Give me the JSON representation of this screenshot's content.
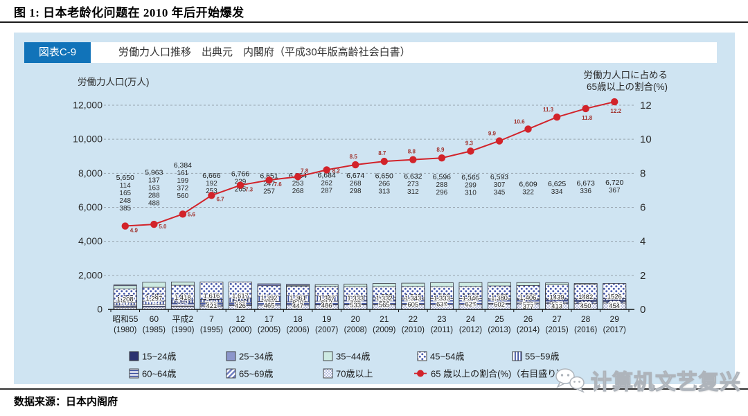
{
  "figure": {
    "title": "图 1: 日本老龄化问题在 2010 年后开始爆发",
    "source": "数据来源：日本内阁府",
    "watermark": "计算机文艺复兴"
  },
  "panel": {
    "badge": "図表C-9",
    "header": "労働力人口推移　出典元　内閣府（平成30年版高齢社会白書）"
  },
  "chart_data": {
    "type": "bar",
    "subtype": "stacked-bar-with-line-overlay",
    "title": "労働力人口推移",
    "left_axis": {
      "title": "労働力人口(万人)",
      "ticks": [
        "12,000",
        "10,000",
        "8,000",
        "6,000",
        "4,000",
        "2,000",
        "0"
      ],
      "min": 0,
      "max": 12000
    },
    "right_axis": {
      "title_line1": "労働力人口に占める",
      "title_line2": "65歳以上の割合(%)",
      "ticks": [
        "12",
        "10",
        "8",
        "6",
        "4",
        "2",
        "0"
      ],
      "min": 0,
      "max": 12
    },
    "grid": "dashed-horizontal",
    "legend_position": "bottom",
    "categories": [
      {
        "era": "昭和55",
        "year": "(1980)"
      },
      {
        "era": "60",
        "year": "(1985)"
      },
      {
        "era": "平成2",
        "year": "(1990)"
      },
      {
        "era": "7",
        "year": "(1995)"
      },
      {
        "era": "12",
        "year": "(2000)"
      },
      {
        "era": "17",
        "year": "(2005)"
      },
      {
        "era": "18",
        "year": "(2006)"
      },
      {
        "era": "19",
        "year": "(2007)"
      },
      {
        "era": "20",
        "year": "(2008)"
      },
      {
        "era": "21",
        "year": "(2009)"
      },
      {
        "era": "22",
        "year": "(2010)"
      },
      {
        "era": "23",
        "year": "(2011)"
      },
      {
        "era": "24",
        "year": "(2012)"
      },
      {
        "era": "25",
        "year": "(2013)"
      },
      {
        "era": "26",
        "year": "(2014)"
      },
      {
        "era": "27",
        "year": "(2015)"
      },
      {
        "era": "28",
        "year": "(2016)"
      },
      {
        "era": "29",
        "year": "(2017)"
      }
    ],
    "totals": [
      "5,650",
      "5,963",
      "6,384",
      "6,666",
      "6,766",
      "6,651",
      "6,664",
      "6,684",
      "6,674",
      "6,650",
      "6,632",
      "6,596",
      "6,565",
      "6,593",
      "6,609",
      "6,625",
      "6,673",
      "6,720"
    ],
    "outside_label_counts": [
      4,
      4,
      4,
      2,
      2,
      2,
      2,
      2,
      2,
      2,
      2,
      2,
      2,
      2,
      1,
      1,
      1,
      1
    ],
    "series": [
      {
        "name": "15~24歳",
        "style": "solid-navy",
        "values": [
          "699",
          "733",
          "834",
          "886",
          "761",
          "635",
          "622",
          "607",
          "589",
          "565",
          "544",
          "525",
          "514",
          "518",
          "518",
          "516",
          "539",
          "545"
        ]
      },
      {
        "name": "25~34歳",
        "style": "solid-periwinkle",
        "values": [
          "1,438",
          "1,261",
          "1,225",
          "1,327",
          "1,508",
          "1,503",
          "1,480",
          "1,429",
          "1,394",
          "1,364",
          "1,329",
          "1,291",
          "1,261",
          "1,239",
          "1,214",
          "1191",
          "1180",
          "1167"
        ]
      },
      {
        "name": "35~44歳",
        "style": "solid-teal",
        "values": [
          "1,393",
          "1,597",
          "1,614",
          "1,378",
          "1,296",
          "1,377",
          "1,413",
          "1,456",
          "1,491",
          "1,523",
          "1,542",
          "1,569",
          "1,577",
          "1,582",
          "1,576",
          "1558",
          "1527",
          "1497"
        ]
      },
      {
        "name": "45~54歳",
        "style": "dots",
        "values": [
          "1,208",
          "1,297",
          "1,418",
          "1,616",
          "1,617",
          "1,392",
          "1,361",
          "1,347",
          "1,333",
          "1,332",
          "1,343",
          "1,333",
          "1,346",
          "1,380",
          "1,406",
          "1439",
          "1482",
          "1526"
        ]
      },
      {
        "name": "55~59歳",
        "style": "vstripes",
        "values": [
          "385",
          "488",
          "560",
          "593",
          "666",
          "776",
          "820",
          "812",
          "769",
          "722",
          "686",
          "655",
          "629",
          "620",
          "620",
          "617",
          "619",
          "628"
        ]
      },
      {
        "name": "60~64歳",
        "style": "hstripes",
        "values": [
          "248",
          "288",
          "372",
          "421",
          "426",
          "465",
          "447",
          "486",
          "533",
          "565",
          "605",
          "637",
          "627",
          "602",
          "575",
          "556",
          "541",
          "536"
        ]
      },
      {
        "name": "65~69歳",
        "style": "diag",
        "values": [
          "165",
          "163",
          "199",
          "253",
          "265",
          "257",
          "268",
          "287",
          "298",
          "313",
          "312",
          "296",
          "310",
          "345",
          "377",
          "413",
          "450",
          "454"
        ]
      },
      {
        "name": "70歳以上",
        "style": "fine-dots",
        "values": [
          "114",
          "137",
          "161",
          "192",
          "229",
          "247",
          "253",
          "262",
          "268",
          "266",
          "273",
          "288",
          "299",
          "307",
          "322",
          "334",
          "336",
          "367"
        ]
      }
    ],
    "rate_series": {
      "name": "65 歳以上の割合(%)（右目盛り）",
      "values": [
        "4.9",
        "5.0",
        "5.6",
        "6.7",
        "7.3",
        "7.6",
        "7.8",
        "8.2",
        "8.5",
        "8.7",
        "8.8",
        "8.9",
        "9.3",
        "9.9",
        "10.6",
        "11.3",
        "11.8",
        "12.2"
      ]
    },
    "colors": {
      "panel_bg": "#cfe4f2",
      "badge_bg": "#1173b9",
      "navy": "#2a3170",
      "periwinkle": "#8c96cb",
      "teal": "#cdeae2",
      "pattern_blue": "#4d5fae",
      "line_red": "#d2232a",
      "rate_label": "#a0322d",
      "grid": "#97a3ad"
    }
  }
}
